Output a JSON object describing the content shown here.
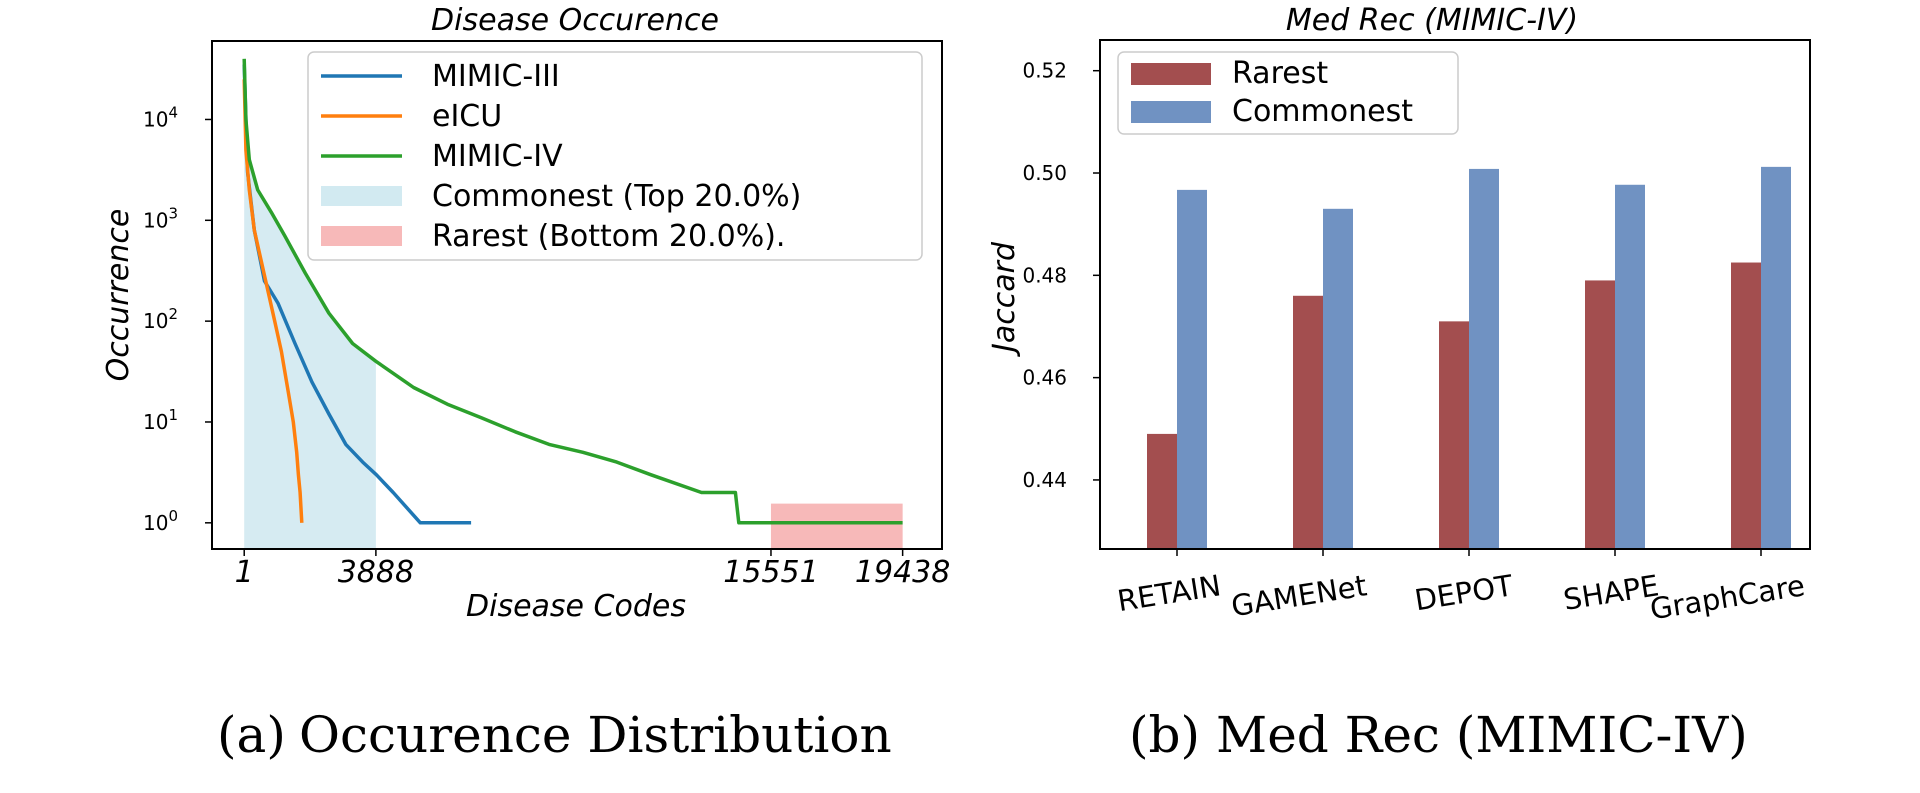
{
  "chart_data": [
    {
      "type": "line",
      "title": "Disease Occurence",
      "xlabel": "Disease Codes",
      "ylabel": "Occurrence",
      "yscale": "log",
      "ylim": [
        0.55,
        60000
      ],
      "xlim": [
        -950,
        20600
      ],
      "x_ticks": [
        {
          "value": 1,
          "label": "1"
        },
        {
          "value": 3888,
          "label": "3888"
        },
        {
          "value": 15551,
          "label": "15551"
        },
        {
          "value": 19438,
          "label": "19438"
        }
      ],
      "y_ticks": [
        {
          "value": 1,
          "base": "10",
          "exp": "0"
        },
        {
          "value": 10,
          "base": "10",
          "exp": "1"
        },
        {
          "value": 100,
          "base": "10",
          "exp": "2"
        },
        {
          "value": 1000,
          "base": "10",
          "exp": "3"
        },
        {
          "value": 10000,
          "base": "10",
          "exp": "4"
        }
      ],
      "series": [
        {
          "name": "MIMIC-III",
          "color": "#1f77b4",
          "points": [
            [
              1,
              35000
            ],
            [
              100,
              3000
            ],
            [
              300,
              800
            ],
            [
              600,
              250
            ],
            [
              1000,
              150
            ],
            [
              1500,
              60
            ],
            [
              2000,
              25
            ],
            [
              2500,
              12
            ],
            [
              3000,
              6
            ],
            [
              3500,
              4
            ],
            [
              3900,
              3
            ],
            [
              4400,
              2
            ],
            [
              5200,
              1
            ],
            [
              6700,
              1
            ]
          ]
        },
        {
          "name": "eICU",
          "color": "#ff7f0e",
          "points": [
            [
              1,
              25000
            ],
            [
              50,
              5000
            ],
            [
              150,
              2000
            ],
            [
              300,
              800
            ],
            [
              500,
              400
            ],
            [
              700,
              200
            ],
            [
              900,
              100
            ],
            [
              1100,
              50
            ],
            [
              1300,
              20
            ],
            [
              1450,
              10
            ],
            [
              1550,
              5
            ],
            [
              1600,
              3
            ],
            [
              1650,
              2
            ],
            [
              1700,
              1
            ]
          ]
        },
        {
          "name": "MIMIC-IV",
          "color": "#2ca02c",
          "points": [
            [
              1,
              40000
            ],
            [
              50,
              10000
            ],
            [
              150,
              4000
            ],
            [
              400,
              2000
            ],
            [
              800,
              1200
            ],
            [
              1200,
              700
            ],
            [
              1800,
              300
            ],
            [
              2500,
              120
            ],
            [
              3200,
              60
            ],
            [
              3888,
              40
            ],
            [
              5000,
              22
            ],
            [
              6000,
              15
            ],
            [
              7000,
              11
            ],
            [
              8000,
              8
            ],
            [
              9000,
              6
            ],
            [
              10000,
              5
            ],
            [
              11000,
              4
            ],
            [
              12000,
              3
            ],
            [
              13500,
              2
            ],
            [
              14500,
              2
            ],
            [
              14600,
              1
            ],
            [
              19438,
              1
            ]
          ]
        }
      ],
      "shaded_regions": [
        {
          "name": "Commonest (Top 20.0%)",
          "x0": 1,
          "x1": 3888,
          "color": "#add8e6"
        },
        {
          "name": "Rarest (Bottom 20.0%).",
          "x0": 15551,
          "x1": 19438,
          "color": "#f08080"
        }
      ],
      "legend_position": "top-right"
    },
    {
      "type": "bar",
      "title": "Med Rec (MIMIC-IV)",
      "xlabel": "",
      "ylabel": "Jaccard",
      "ylim": [
        0.4265,
        0.526
      ],
      "y_ticks": [
        "0.44",
        "0.46",
        "0.48",
        "0.50",
        "0.52"
      ],
      "categories": [
        "RETAIN",
        "GAMENet",
        "DEPOT",
        "SHAPE",
        "GraphCare"
      ],
      "series": [
        {
          "name": "Rarest",
          "color": "#a34e4f",
          "values": [
            0.449,
            0.476,
            0.471,
            0.479,
            0.4825
          ]
        },
        {
          "name": "Commonest",
          "color": "#7092c2",
          "values": [
            0.4967,
            0.493,
            0.5008,
            0.4977,
            0.5012
          ]
        }
      ],
      "legend_position": "top-left"
    }
  ],
  "captions": [
    {
      "tag": "(a)",
      "text": "Occurence Distribution"
    },
    {
      "tag": "(b)",
      "text": "Med Rec (MIMIC-IV)"
    }
  ]
}
